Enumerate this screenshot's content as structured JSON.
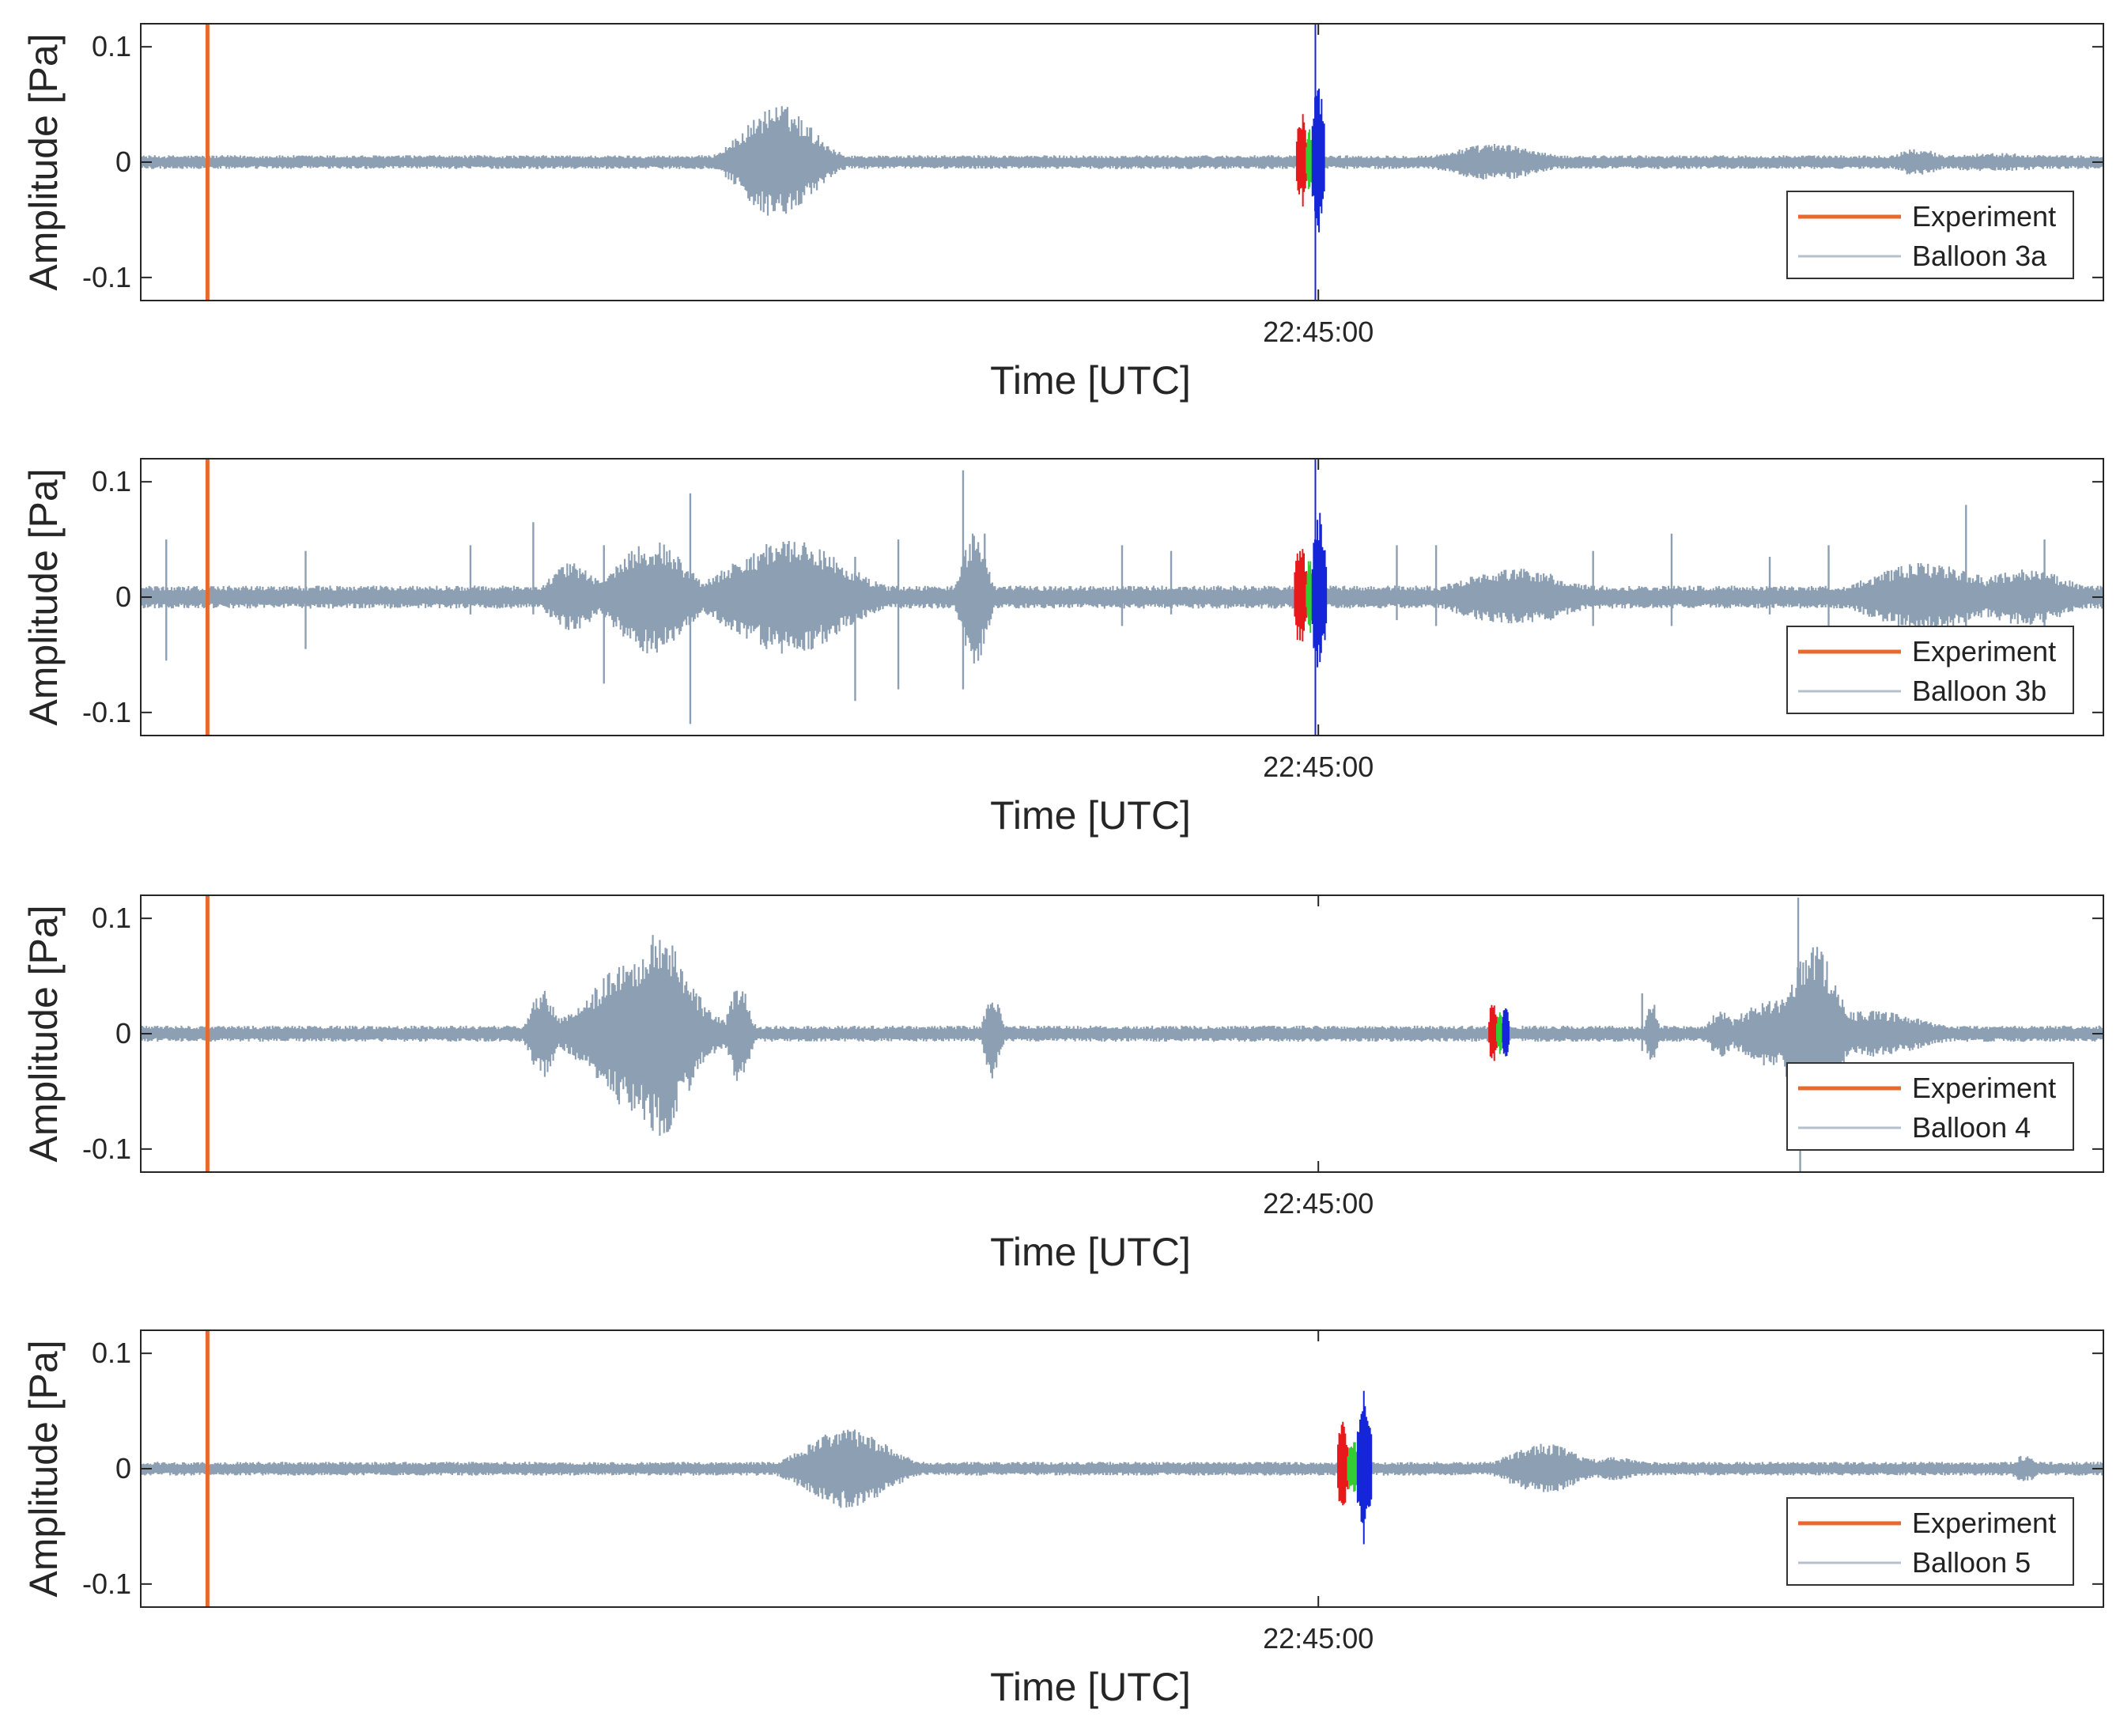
{
  "figure": {
    "description_colors": {
      "trace": "#8da0b3",
      "experiment": "#e8692e",
      "red": "#e8191b",
      "green": "#33cc33",
      "blue": "#1426d8",
      "axis": "#262626"
    }
  },
  "chart_data": [
    {
      "type": "line",
      "title": "",
      "ylabel": "Amplitude [Pa]",
      "xlabel": "Time [UTC]",
      "xtick_label": "22:45:00",
      "xtick_position": 0.6,
      "xlim": [
        0,
        1
      ],
      "ylim": [
        -0.12,
        0.12
      ],
      "yticks": [
        -0.1,
        0,
        0.1
      ],
      "ytick_labels": [
        "-0.1",
        "0",
        "0.1"
      ],
      "experiment_x": 0.034,
      "legend": [
        "Experiment",
        "Balloon 3a"
      ],
      "legend_location": "bottom-right",
      "noise_amplitude": 0.006,
      "bursts": [
        {
          "center": 0.325,
          "width": 0.03,
          "amplitude": 0.05
        },
        {
          "center": 0.69,
          "width": 0.04,
          "amplitude": 0.016
        },
        {
          "center": 0.905,
          "width": 0.02,
          "amplitude": 0.012
        },
        {
          "center": 0.945,
          "width": 0.06,
          "amplitude": 0.008
        }
      ],
      "spikes": [],
      "arrivals": [
        {
          "color": "red",
          "start": 0.589,
          "end": 0.594,
          "amplitude": 0.045
        },
        {
          "color": "green",
          "start": 0.594,
          "end": 0.597,
          "amplitude": 0.03
        },
        {
          "color": "blue",
          "start": 0.597,
          "end": 0.603,
          "amplitude": 0.07
        }
      ],
      "vertical_blue_line": true
    },
    {
      "type": "line",
      "title": "",
      "ylabel": "Amplitude [Pa]",
      "xlabel": "Time [UTC]",
      "xtick_label": "22:45:00",
      "xtick_position": 0.6,
      "xlim": [
        0,
        1
      ],
      "ylim": [
        -0.12,
        0.12
      ],
      "yticks": [
        -0.1,
        0,
        0.1
      ],
      "ytick_labels": [
        "-0.1",
        "0",
        "0.1"
      ],
      "experiment_x": 0.034,
      "legend": [
        "Experiment",
        "Balloon 3b"
      ],
      "legend_location": "bottom-right",
      "noise_amplitude": 0.01,
      "bursts": [
        {
          "center": 0.22,
          "width": 0.02,
          "amplitude": 0.03
        },
        {
          "center": 0.26,
          "width": 0.03,
          "amplitude": 0.05
        },
        {
          "center": 0.33,
          "width": 0.05,
          "amplitude": 0.05
        },
        {
          "center": 0.425,
          "width": 0.01,
          "amplitude": 0.06
        },
        {
          "center": 0.7,
          "width": 0.05,
          "amplitude": 0.025
        },
        {
          "center": 0.91,
          "width": 0.05,
          "amplitude": 0.03
        },
        {
          "center": 0.96,
          "width": 0.04,
          "amplitude": 0.025
        }
      ],
      "spikes": [
        {
          "x": 0.28,
          "up": 0.09,
          "down": 0.11
        },
        {
          "x": 0.335,
          "up": 0.035,
          "down": 0.015
        },
        {
          "x": 0.364,
          "up": 0.035,
          "down": 0.09
        },
        {
          "x": 0.419,
          "up": 0.11,
          "down": 0.08
        },
        {
          "x": 0.386,
          "up": 0.05,
          "down": 0.08
        },
        {
          "x": 0.013,
          "up": 0.05,
          "down": 0.055
        },
        {
          "x": 0.084,
          "up": 0.04,
          "down": 0.045
        },
        {
          "x": 0.168,
          "up": 0.045,
          "down": 0.015
        },
        {
          "x": 0.2,
          "up": 0.065,
          "down": 0.015
        },
        {
          "x": 0.236,
          "up": 0.045,
          "down": 0.075
        },
        {
          "x": 0.43,
          "up": 0.055,
          "down": 0.015
        },
        {
          "x": 0.5,
          "up": 0.045,
          "down": 0.025
        },
        {
          "x": 0.525,
          "up": 0.04,
          "down": 0.015
        },
        {
          "x": 0.64,
          "up": 0.045,
          "down": 0.02
        },
        {
          "x": 0.66,
          "up": 0.045,
          "down": 0.025
        },
        {
          "x": 0.74,
          "up": 0.04,
          "down": 0.025
        },
        {
          "x": 0.78,
          "up": 0.055,
          "down": 0.025
        },
        {
          "x": 0.83,
          "up": 0.035,
          "down": 0.015
        },
        {
          "x": 0.86,
          "up": 0.045,
          "down": 0.025
        },
        {
          "x": 0.93,
          "up": 0.08,
          "down": 0.025
        },
        {
          "x": 0.97,
          "up": 0.05,
          "down": 0.035
        }
      ],
      "arrivals": [
        {
          "color": "red",
          "start": 0.588,
          "end": 0.594,
          "amplitude": 0.05
        },
        {
          "color": "green",
          "start": 0.594,
          "end": 0.597,
          "amplitude": 0.035
        },
        {
          "color": "blue",
          "start": 0.597,
          "end": 0.604,
          "amplitude": 0.075
        }
      ],
      "vertical_blue_line": true
    },
    {
      "type": "line",
      "title": "",
      "ylabel": "Amplitude [Pa]",
      "xlabel": "Time [UTC]",
      "xtick_label": "22:45:00",
      "xtick_position": 0.6,
      "xlim": [
        0,
        1
      ],
      "ylim": [
        -0.12,
        0.12
      ],
      "yticks": [
        -0.1,
        0,
        0.1
      ],
      "ytick_labels": [
        "-0.1",
        "0",
        "0.1"
      ],
      "experiment_x": 0.034,
      "legend": [
        "Experiment",
        "Balloon 4"
      ],
      "legend_location": "bottom-right",
      "noise_amplitude": 0.007,
      "bursts": [
        {
          "center": 0.205,
          "width": 0.01,
          "amplitude": 0.04
        },
        {
          "center": 0.255,
          "width": 0.04,
          "amplitude": 0.07
        },
        {
          "center": 0.265,
          "width": 0.025,
          "amplitude": 0.09
        },
        {
          "center": 0.305,
          "width": 0.008,
          "amplitude": 0.045
        },
        {
          "center": 0.434,
          "width": 0.006,
          "amplitude": 0.04
        },
        {
          "center": 0.77,
          "width": 0.004,
          "amplitude": 0.03
        },
        {
          "center": 0.805,
          "width": 0.01,
          "amplitude": 0.02
        },
        {
          "center": 0.852,
          "width": 0.02,
          "amplitude": 0.08
        },
        {
          "center": 0.83,
          "width": 0.025,
          "amplitude": 0.03
        },
        {
          "center": 0.88,
          "width": 0.05,
          "amplitude": 0.02
        }
      ],
      "spikes": [
        {
          "x": 0.765,
          "up": 0.035,
          "down": 0.015
        },
        {
          "x": 0.8445,
          "up": 0.118,
          "down": 0.035
        },
        {
          "x": 0.8455,
          "up": 0.04,
          "down": 0.12
        }
      ],
      "arrivals": [
        {
          "color": "red",
          "start": 0.687,
          "end": 0.691,
          "amplitude": 0.03
        },
        {
          "color": "green",
          "start": 0.691,
          "end": 0.694,
          "amplitude": 0.02
        },
        {
          "color": "blue",
          "start": 0.694,
          "end": 0.697,
          "amplitude": 0.035
        }
      ],
      "vertical_blue_line": false
    },
    {
      "type": "line",
      "title": "",
      "ylabel": "Amplitude [Pa]",
      "xlabel": "Time [UTC]",
      "xtick_label": "22:45:00",
      "xtick_position": 0.6,
      "xlim": [
        0,
        1
      ],
      "ylim": [
        -0.12,
        0.12
      ],
      "yticks": [
        -0.1,
        0,
        0.1
      ],
      "ytick_labels": [
        "-0.1",
        "0",
        "0.1"
      ],
      "experiment_x": 0.034,
      "legend": [
        "Experiment",
        "Balloon 5"
      ],
      "legend_location": "bottom-right",
      "noise_amplitude": 0.006,
      "bursts": [
        {
          "center": 0.36,
          "width": 0.035,
          "amplitude": 0.035
        },
        {
          "center": 0.715,
          "width": 0.03,
          "amplitude": 0.022
        },
        {
          "center": 0.75,
          "width": 0.03,
          "amplitude": 0.01
        },
        {
          "center": 0.96,
          "width": 0.01,
          "amplitude": 0.012
        }
      ],
      "spikes": [],
      "arrivals": [
        {
          "color": "red",
          "start": 0.61,
          "end": 0.615,
          "amplitude": 0.045
        },
        {
          "color": "green",
          "start": 0.615,
          "end": 0.62,
          "amplitude": 0.03
        },
        {
          "color": "blue",
          "start": 0.62,
          "end": 0.627,
          "amplitude": 0.07
        }
      ],
      "vertical_blue_line": false
    }
  ]
}
